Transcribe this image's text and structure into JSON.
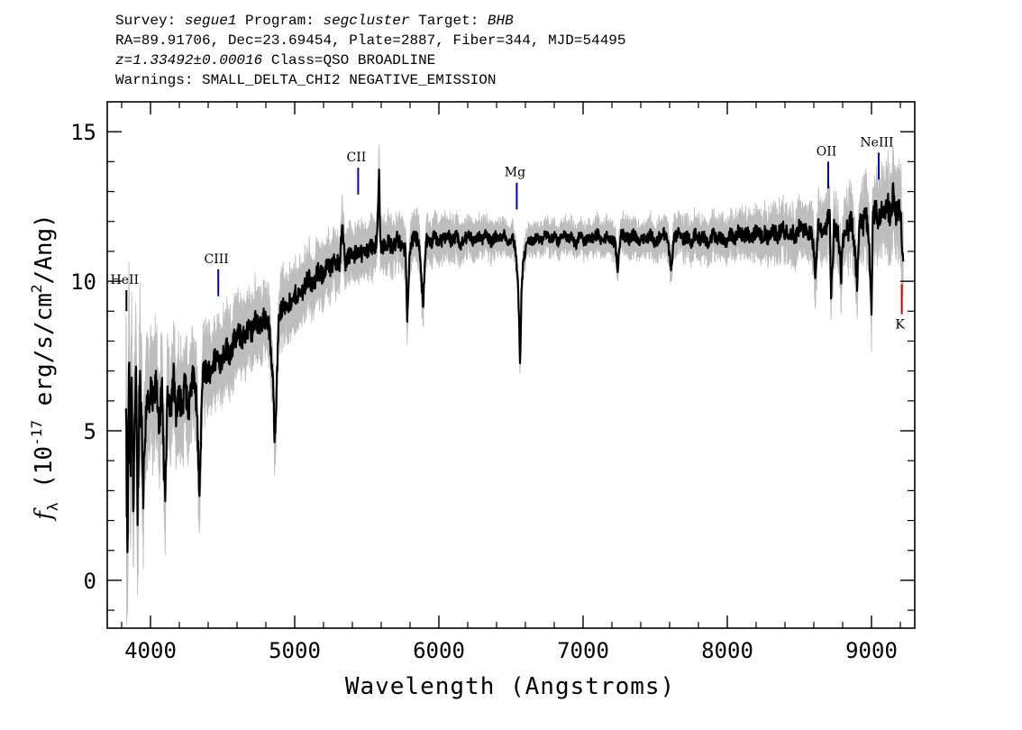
{
  "header": {
    "survey_label": "Survey:",
    "survey_value": "segue1",
    "program_label": "Program:",
    "program_value": "segcluster",
    "target_label": "Target:",
    "target_value": "BHB",
    "coords_line": "RA=89.91706, Dec=23.69454, Plate=2887, Fiber=344, MJD=54495",
    "z_value": "z=1.33492±0.00016",
    "class_text": "Class=QSO BROADLINE",
    "warnings_line": "Warnings: SMALL_DELTA_CHI2 NEGATIVE_EMISSION"
  },
  "chart_data": {
    "type": "line",
    "xlabel": "Wavelength (Angstroms)",
    "ylabel_main": "f",
    "ylabel_sub": "λ",
    "ylabel_rest1": " (10",
    "ylabel_exp1": "-17",
    "ylabel_rest2": " erg/s/cm",
    "ylabel_exp2": "2",
    "ylabel_rest3": "/Ang)",
    "xlim": [
      3700,
      9300
    ],
    "ylim": [
      -1.6,
      16.0
    ],
    "x_ticks": [
      4000,
      5000,
      6000,
      7000,
      8000,
      9000
    ],
    "x_tick_labels": [
      "4000",
      "5000",
      "6000",
      "7000",
      "8000",
      "9000"
    ],
    "y_ticks": [
      0,
      5,
      10,
      15
    ],
    "y_tick_labels": [
      "0",
      "5",
      "10",
      "15"
    ],
    "colors": {
      "flux": "#000000",
      "error_band": "#bdbdbd",
      "line_marker": "#0000cc",
      "absorption_marker": "#cc0000"
    },
    "series": [
      {
        "role": "flux",
        "points": [
          [
            3830,
            5.4
          ],
          [
            3840,
            0.3
          ],
          [
            3850,
            7.6
          ],
          [
            3860,
            3.2
          ],
          [
            3870,
            6.6
          ],
          [
            3880,
            2.8
          ],
          [
            3890,
            5.2
          ],
          [
            3900,
            6.4
          ],
          [
            3910,
            2.4
          ],
          [
            3925,
            6.7
          ],
          [
            3940,
            5.2
          ],
          [
            3950,
            3.0
          ],
          [
            3960,
            4.6
          ],
          [
            3975,
            6.4
          ],
          [
            3990,
            5.4
          ],
          [
            4000,
            6.3
          ],
          [
            4020,
            5.8
          ],
          [
            4040,
            6.6
          ],
          [
            4060,
            5.3
          ],
          [
            4080,
            6.2
          ],
          [
            4100,
            2.6
          ],
          [
            4120,
            6.4
          ],
          [
            4140,
            5.8
          ],
          [
            4160,
            6.8
          ],
          [
            4180,
            5.5
          ],
          [
            4200,
            6.2
          ],
          [
            4220,
            5.7
          ],
          [
            4240,
            6.7
          ],
          [
            4260,
            5.6
          ],
          [
            4280,
            6.3
          ],
          [
            4300,
            6.9
          ],
          [
            4320,
            5.9
          ],
          [
            4340,
            2.7
          ],
          [
            4360,
            6.8
          ],
          [
            4380,
            7.0
          ],
          [
            4400,
            6.9
          ],
          [
            4430,
            7.2
          ],
          [
            4460,
            7.5
          ],
          [
            4490,
            7.3
          ],
          [
            4520,
            7.8
          ],
          [
            4550,
            7.6
          ],
          [
            4580,
            8.0
          ],
          [
            4610,
            8.2
          ],
          [
            4640,
            8.1
          ],
          [
            4670,
            8.4
          ],
          [
            4700,
            8.3
          ],
          [
            4730,
            8.7
          ],
          [
            4760,
            8.5
          ],
          [
            4790,
            8.8
          ],
          [
            4820,
            8.6
          ],
          [
            4850,
            6.5
          ],
          [
            4861,
            4.8
          ],
          [
            4875,
            6.4
          ],
          [
            4890,
            8.9
          ],
          [
            4920,
            9.1
          ],
          [
            4950,
            9.3
          ],
          [
            4980,
            9.2
          ],
          [
            5010,
            9.6
          ],
          [
            5040,
            9.5
          ],
          [
            5070,
            9.9
          ],
          [
            5100,
            10.1
          ],
          [
            5130,
            9.8
          ],
          [
            5160,
            10.3
          ],
          [
            5190,
            10.2
          ],
          [
            5220,
            10.5
          ],
          [
            5250,
            10.4
          ],
          [
            5280,
            10.7
          ],
          [
            5310,
            10.6
          ],
          [
            5330,
            11.8
          ],
          [
            5350,
            10.6
          ],
          [
            5380,
            10.9
          ],
          [
            5410,
            10.8
          ],
          [
            5440,
            11.1
          ],
          [
            5470,
            10.9
          ],
          [
            5500,
            11.0
          ],
          [
            5530,
            11.2
          ],
          [
            5560,
            11.1
          ],
          [
            5575,
            11.9
          ],
          [
            5585,
            13.6
          ],
          [
            5595,
            11.2
          ],
          [
            5620,
            11.2
          ],
          [
            5650,
            11.3
          ],
          [
            5680,
            11.1
          ],
          [
            5710,
            11.4
          ],
          [
            5740,
            11.2
          ],
          [
            5770,
            11.0
          ],
          [
            5780,
            8.9
          ],
          [
            5800,
            11.1
          ],
          [
            5830,
            11.5
          ],
          [
            5860,
            11.3
          ],
          [
            5890,
            9.2
          ],
          [
            5910,
            11.4
          ],
          [
            5940,
            11.2
          ],
          [
            5970,
            11.5
          ],
          [
            6000,
            11.3
          ],
          [
            6030,
            11.4
          ],
          [
            6060,
            11.6
          ],
          [
            6090,
            11.3
          ],
          [
            6120,
            11.5
          ],
          [
            6150,
            11.2
          ],
          [
            6180,
            11.4
          ],
          [
            6210,
            11.6
          ],
          [
            6240,
            11.3
          ],
          [
            6270,
            11.5
          ],
          [
            6300,
            11.4
          ],
          [
            6330,
            11.6
          ],
          [
            6360,
            11.3
          ],
          [
            6390,
            11.5
          ],
          [
            6420,
            11.4
          ],
          [
            6450,
            11.6
          ],
          [
            6480,
            11.3
          ],
          [
            6510,
            11.5
          ],
          [
            6530,
            11.1
          ],
          [
            6545,
            10.2
          ],
          [
            6555,
            9.0
          ],
          [
            6563,
            7.2
          ],
          [
            6572,
            9.5
          ],
          [
            6585,
            10.7
          ],
          [
            6600,
            11.0
          ],
          [
            6620,
            11.4
          ],
          [
            6650,
            11.3
          ],
          [
            6680,
            11.5
          ],
          [
            6710,
            11.3
          ],
          [
            6740,
            11.6
          ],
          [
            6770,
            11.4
          ],
          [
            6800,
            11.5
          ],
          [
            6830,
            11.3
          ],
          [
            6860,
            11.6
          ],
          [
            6890,
            11.4
          ],
          [
            6920,
            11.5
          ],
          [
            6950,
            11.2
          ],
          [
            6980,
            11.6
          ],
          [
            7010,
            11.3
          ],
          [
            7040,
            11.5
          ],
          [
            7070,
            11.4
          ],
          [
            7100,
            11.6
          ],
          [
            7130,
            11.3
          ],
          [
            7160,
            11.5
          ],
          [
            7190,
            11.4
          ],
          [
            7220,
            11.3
          ],
          [
            7240,
            10.4
          ],
          [
            7260,
            11.6
          ],
          [
            7290,
            11.5
          ],
          [
            7320,
            11.4
          ],
          [
            7350,
            11.6
          ],
          [
            7380,
            11.3
          ],
          [
            7410,
            11.5
          ],
          [
            7440,
            11.4
          ],
          [
            7470,
            11.6
          ],
          [
            7500,
            11.2
          ],
          [
            7530,
            11.5
          ],
          [
            7560,
            11.6
          ],
          [
            7590,
            11.3
          ],
          [
            7610,
            10.4
          ],
          [
            7630,
            11.4
          ],
          [
            7660,
            11.6
          ],
          [
            7690,
            11.4
          ],
          [
            7720,
            11.5
          ],
          [
            7750,
            11.3
          ],
          [
            7780,
            11.6
          ],
          [
            7810,
            11.4
          ],
          [
            7840,
            11.5
          ],
          [
            7870,
            11.2
          ],
          [
            7900,
            11.6
          ],
          [
            7930,
            11.4
          ],
          [
            7960,
            11.5
          ],
          [
            7990,
            11.3
          ],
          [
            8020,
            11.6
          ],
          [
            8050,
            11.4
          ],
          [
            8080,
            11.7
          ],
          [
            8110,
            11.5
          ],
          [
            8140,
            11.6
          ],
          [
            8170,
            11.4
          ],
          [
            8200,
            11.7
          ],
          [
            8230,
            11.5
          ],
          [
            8260,
            11.6
          ],
          [
            8290,
            11.4
          ],
          [
            8320,
            11.7
          ],
          [
            8350,
            11.5
          ],
          [
            8380,
            11.8
          ],
          [
            8410,
            11.6
          ],
          [
            8440,
            11.7
          ],
          [
            8470,
            11.5
          ],
          [
            8500,
            11.8
          ],
          [
            8530,
            11.6
          ],
          [
            8560,
            11.7
          ],
          [
            8590,
            11.5
          ],
          [
            8610,
            10.2
          ],
          [
            8630,
            11.8
          ],
          [
            8660,
            11.6
          ],
          [
            8690,
            11.9
          ],
          [
            8710,
            12.4
          ],
          [
            8720,
            9.4
          ],
          [
            8740,
            11.8
          ],
          [
            8770,
            11.6
          ],
          [
            8790,
            10.2
          ],
          [
            8810,
            11.9
          ],
          [
            8840,
            11.7
          ],
          [
            8860,
            12.1
          ],
          [
            8880,
            11.2
          ],
          [
            8900,
            9.9
          ],
          [
            8920,
            12.0
          ],
          [
            8940,
            11.8
          ],
          [
            8960,
            12.3
          ],
          [
            8980,
            11.6
          ],
          [
            9000,
            9.0
          ],
          [
            9010,
            12.1
          ],
          [
            9030,
            12.4
          ],
          [
            9050,
            12.0
          ],
          [
            9070,
            12.5
          ],
          [
            9090,
            12.1
          ],
          [
            9110,
            12.6
          ],
          [
            9130,
            12.2
          ],
          [
            9150,
            12.9
          ],
          [
            9170,
            12.2
          ],
          [
            9190,
            12.5
          ],
          [
            9210,
            11.6
          ],
          [
            9220,
            10.8
          ]
        ]
      }
    ],
    "error_band_halfwidth": [
      [
        3830,
        2.8
      ],
      [
        4000,
        1.6
      ],
      [
        4400,
        1.1
      ],
      [
        5000,
        0.85
      ],
      [
        5600,
        0.7
      ],
      [
        6600,
        0.4
      ],
      [
        8000,
        0.55
      ],
      [
        8800,
        0.85
      ],
      [
        9220,
        1.2
      ]
    ],
    "annotations": [
      {
        "label": "HeII",
        "x": 3833,
        "y_top": 9.7,
        "y_bottom": 9.0,
        "color": "#000000",
        "label_position": "above"
      },
      {
        "label": "CIII",
        "x": 4470,
        "y_top": 10.4,
        "y_bottom": 9.5,
        "color": "#0000cc",
        "label_position": "above"
      },
      {
        "label": "CII",
        "x": 5440,
        "y_top": 13.8,
        "y_bottom": 12.9,
        "color": "#0000cc",
        "label_position": "above"
      },
      {
        "label": "Mg",
        "x": 6540,
        "y_top": 13.3,
        "y_bottom": 12.4,
        "color": "#0000cc",
        "label_position": "above"
      },
      {
        "label": "OII",
        "x": 8700,
        "y_top": 14.0,
        "y_bottom": 13.1,
        "color": "#000088",
        "label_position": "above"
      },
      {
        "label": "NeIII",
        "x": 9050,
        "y_top": 14.3,
        "y_bottom": 13.4,
        "color": "#0000cc",
        "label_position": "above"
      },
      {
        "label": "K",
        "x": 9210,
        "y_top": 9.9,
        "y_bottom": 8.9,
        "color": "#cc0000",
        "label_position": "below"
      }
    ]
  }
}
